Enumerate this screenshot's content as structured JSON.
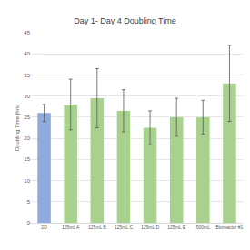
{
  "chart_data": {
    "type": "bar",
    "title": "Day 1- Day 4 Doubling Time",
    "y_label": "Doubling Time [hrs]",
    "categories": [
      "2D",
      "125mL A",
      "125mL B",
      "125mL C",
      "125mL D",
      "125mL E",
      "500mL",
      "Bioreactor #1"
    ],
    "values": [
      26,
      28,
      29.5,
      26.5,
      22.5,
      25,
      25,
      33
    ],
    "errors": [
      2,
      6,
      7,
      5,
      4,
      4.5,
      4,
      9
    ],
    "colors": [
      "#8faadc",
      "#a9d18e",
      "#a9d18e",
      "#a9d18e",
      "#a9d18e",
      "#a9d18e",
      "#a9d18e",
      "#a9d18e"
    ],
    "ylim": [
      0,
      45
    ],
    "yticks": [
      0,
      5,
      10,
      15,
      20,
      25,
      30,
      35,
      40,
      45
    ],
    "grid": true
  }
}
